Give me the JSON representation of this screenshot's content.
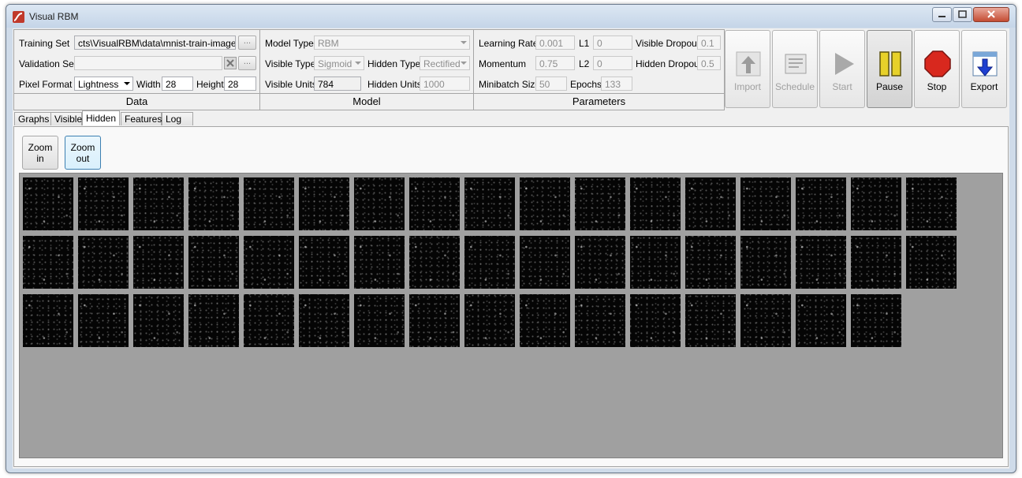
{
  "window": {
    "title": "Visual RBM"
  },
  "data_group": {
    "title": "Data",
    "training_set_label": "Training Set",
    "training_set_value": "cts\\VisualRBM\\data\\mnist-train-images.idx",
    "browse_label": "...",
    "validation_set_label": "Validation Set",
    "validation_set_value": "",
    "pixel_format_label": "Pixel Format",
    "pixel_format_value": "Lightness",
    "width_label": "Width",
    "width_value": "28",
    "height_label": "Height",
    "height_value": "28"
  },
  "model_group": {
    "title": "Model",
    "model_type_label": "Model Type",
    "model_type_value": "RBM",
    "visible_type_label": "Visible Type",
    "visible_type_value": "Sigmoid",
    "hidden_type_label": "Hidden Type",
    "hidden_type_value": "Rectified",
    "visible_units_label": "Visible Units",
    "visible_units_value": "784",
    "hidden_units_label": "Hidden Units",
    "hidden_units_value": "1000"
  },
  "params_group": {
    "title": "Parameters",
    "learning_rate_label": "Learning Rate",
    "learning_rate_value": "0.001",
    "l1_label": "L1",
    "l1_value": "0",
    "visible_dropout_label": "Visible Dropout",
    "visible_dropout_value": "0.1",
    "momentum_label": "Momentum",
    "momentum_value": "0.75",
    "l2_label": "L2",
    "l2_value": "0",
    "hidden_dropout_label": "Hidden Dropout",
    "hidden_dropout_value": "0.5",
    "minibatch_label": "Minibatch Size",
    "minibatch_value": "50",
    "epochs_label": "Epochs",
    "epochs_value": "133"
  },
  "toolbar": {
    "import": "Import",
    "schedule": "Schedule",
    "start": "Start",
    "pause": "Pause",
    "stop": "Stop",
    "export": "Export"
  },
  "tabs": [
    "Graphs",
    "Visible",
    "Hidden",
    "Features",
    "Log"
  ],
  "active_tab": "Hidden",
  "zoom": {
    "in": "Zoom in",
    "out": "Zoom out"
  },
  "hidden_grid": {
    "rows": 3,
    "tiles_per_row": [
      17,
      17,
      16
    ],
    "total_tiles": 50
  }
}
